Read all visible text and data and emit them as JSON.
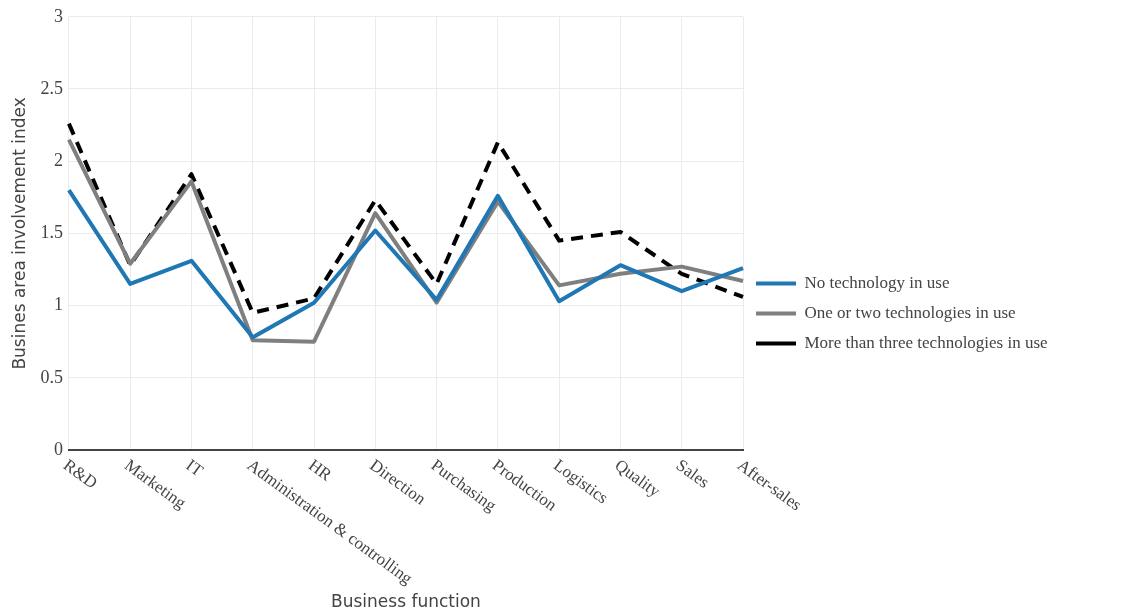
{
  "chart_data": {
    "type": "line",
    "xlabel": "Business function",
    "ylabel": "Busines area involvement index",
    "categories": [
      "R&D",
      "Marketing",
      "IT",
      "Administration & controlling",
      "HR",
      "Direction",
      "Purchasing",
      "Production",
      "Logistics",
      "Quality",
      "Sales",
      "After-sales"
    ],
    "series": [
      {
        "name": "No technology in use",
        "color": "#1f77b4",
        "line_style": "solid",
        "values": [
          1.8,
          1.15,
          1.31,
          0.78,
          1.02,
          1.52,
          1.04,
          1.76,
          1.03,
          1.28,
          1.1,
          1.26
        ]
      },
      {
        "name": "One or two technologies in use",
        "color": "#7f7f7f",
        "line_style": "solid",
        "values": [
          2.15,
          1.29,
          1.86,
          0.76,
          0.75,
          1.64,
          1.02,
          1.72,
          1.14,
          1.22,
          1.27,
          1.17
        ]
      },
      {
        "name": "More than three technologies in use",
        "color": "#000000",
        "line_style": "dashed",
        "values": [
          2.26,
          1.28,
          1.91,
          0.95,
          1.05,
          1.73,
          1.15,
          2.13,
          1.45,
          1.51,
          1.22,
          1.06
        ]
      }
    ],
    "ylim": [
      0,
      3
    ],
    "yticks": [
      0,
      0.5,
      1,
      1.5,
      2,
      2.5,
      3
    ],
    "grid": true,
    "legend": "right",
    "marker": "none"
  }
}
